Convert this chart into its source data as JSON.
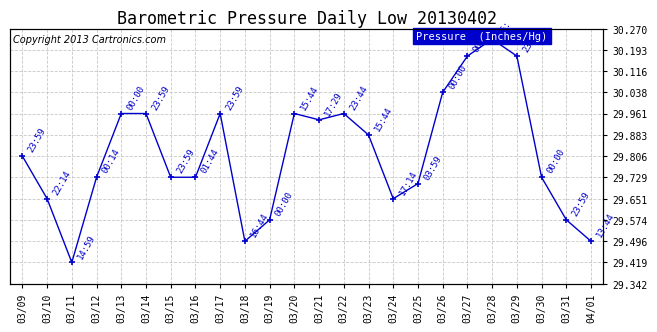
{
  "title": "Barometric Pressure Daily Low 20130402",
  "copyright": "Copyright 2013 Cartronics.com",
  "legend_label": "Pressure  (Inches/Hg)",
  "yticks": [
    29.342,
    29.419,
    29.496,
    29.574,
    29.651,
    29.729,
    29.806,
    29.883,
    29.961,
    30.038,
    30.116,
    30.193,
    30.27
  ],
  "dates": [
    "03/09",
    "03/10",
    "03/11",
    "03/12",
    "03/13",
    "03/14",
    "03/15",
    "03/16",
    "03/17",
    "03/18",
    "03/19",
    "03/20",
    "03/21",
    "03/22",
    "03/23",
    "03/24",
    "03/25",
    "03/26",
    "03/27",
    "03/28",
    "03/29",
    "03/30",
    "03/31",
    "04/01"
  ],
  "values": [
    29.806,
    29.651,
    29.419,
    29.729,
    29.961,
    29.961,
    29.729,
    29.729,
    29.961,
    29.496,
    29.574,
    29.961,
    29.938,
    29.961,
    29.883,
    29.651,
    29.706,
    30.038,
    30.17,
    30.232,
    30.17,
    29.729,
    29.574,
    29.496
  ],
  "time_labels": [
    "23:59",
    "22:14",
    "14:59",
    "00:14",
    "00:00",
    "23:59",
    "23:59",
    "01:44",
    "23:59",
    "16:44",
    "00:00",
    "15:44",
    "17:29",
    "23:44",
    "15:44",
    "17:14",
    "03:59",
    "00:00",
    "00:00",
    "16:",
    "23:59",
    "00:00",
    "23:59",
    "13:44"
  ],
  "line_color": "#0000cc",
  "bg_color": "#ffffff",
  "grid_color": "#c8c8c8",
  "title_fontsize": 12,
  "tick_fontsize": 7,
  "label_fontsize": 6.5,
  "ylim": [
    29.342,
    30.27
  ],
  "legend_bg": "#0000cc",
  "legend_text_color": "#ffffff",
  "copyright_fontsize": 7
}
